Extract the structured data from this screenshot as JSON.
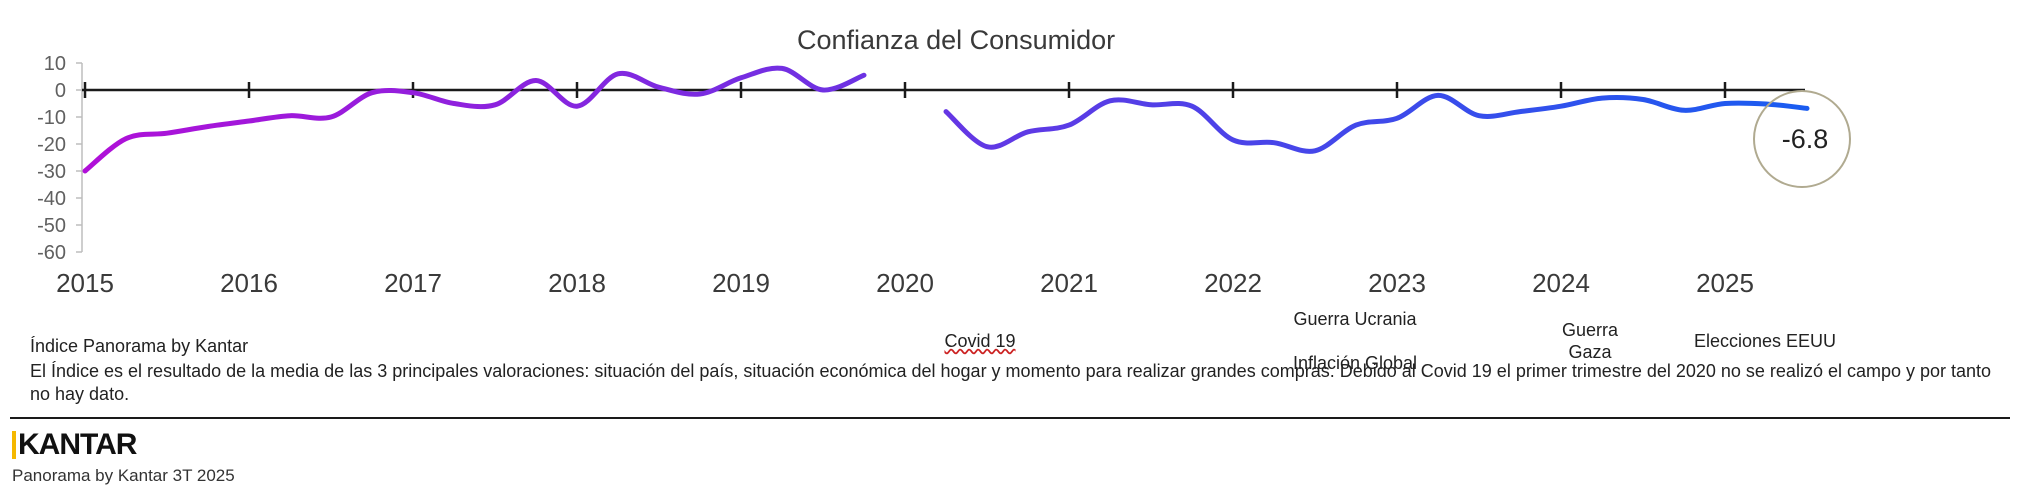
{
  "chart_data": {
    "type": "line",
    "legend": {
      "label": "Confianza del Consumidor",
      "position": "top"
    },
    "colors": {
      "start": "#b010d8",
      "end": "#1a5cf0",
      "axis": "#1a1a1a",
      "callout": "#b0aa90"
    },
    "x_categories": [
      "2015",
      "2016",
      "2017",
      "2018",
      "2019",
      "2020",
      "2021",
      "2022",
      "2023",
      "2024",
      "2025"
    ],
    "ylim": [
      -60,
      10
    ],
    "yticks": [
      10,
      0,
      -10,
      -20,
      -30,
      -40,
      -50,
      -60
    ],
    "grid": false,
    "series": [
      {
        "name": "Confianza del Consumidor",
        "segments": [
          [
            [
              2015.0,
              -30
            ],
            [
              2015.25,
              -18
            ],
            [
              2015.5,
              -16
            ],
            [
              2015.75,
              -13.5
            ],
            [
              2016.0,
              -11.5
            ],
            [
              2016.25,
              -9.5
            ],
            [
              2016.5,
              -10
            ],
            [
              2016.75,
              -1
            ],
            [
              2017.0,
              -1
            ],
            [
              2017.25,
              -5
            ],
            [
              2017.5,
              -5.5
            ],
            [
              2017.75,
              3.5
            ],
            [
              2018.0,
              -6
            ],
            [
              2018.25,
              6
            ],
            [
              2018.5,
              1
            ],
            [
              2018.75,
              -1.5
            ],
            [
              2019.0,
              4.5
            ],
            [
              2019.25,
              8
            ],
            [
              2019.5,
              0
            ],
            [
              2019.75,
              5.5
            ]
          ],
          [
            [
              2020.25,
              -8
            ],
            [
              2020.5,
              -21
            ],
            [
              2020.75,
              -15.5
            ],
            [
              2021.0,
              -13
            ],
            [
              2021.25,
              -4
            ],
            [
              2021.5,
              -5.5
            ],
            [
              2021.75,
              -6
            ],
            [
              2022.0,
              -18.5
            ],
            [
              2022.25,
              -19.5
            ],
            [
              2022.5,
              -22.5
            ],
            [
              2022.75,
              -13
            ],
            [
              2023.0,
              -10.5
            ],
            [
              2023.25,
              -2
            ],
            [
              2023.5,
              -9.5
            ],
            [
              2023.75,
              -8
            ],
            [
              2024.0,
              -6
            ],
            [
              2024.25,
              -3
            ],
            [
              2024.5,
              -3.5
            ],
            [
              2024.75,
              -7.5
            ],
            [
              2025.0,
              -5
            ],
            [
              2025.25,
              -5.2
            ],
            [
              2025.5,
              -6.8
            ]
          ]
        ]
      }
    ],
    "callout": "-6.8",
    "annotations": [
      {
        "id": "covid",
        "lines": [
          "Covid 19"
        ]
      },
      {
        "id": "ucrania",
        "lines": [
          "Guerra Ucrania"
        ]
      },
      {
        "id": "inflacion",
        "lines": [
          "Inflación Global"
        ]
      },
      {
        "id": "gaza",
        "lines": [
          "Guerra",
          "Gaza"
        ]
      },
      {
        "id": "eeuu",
        "lines": [
          "Elecciones EEUU"
        ]
      }
    ]
  },
  "notes": {
    "title": "Índice Panorama by Kantar",
    "body": "El Índice es el resultado de la media de las 3 principales valoraciones: situación del país, situación económica del hogar y momento para realizar grandes compras. Debido al Covid 19 el primer trimestre del 2020 no se realizó el campo y por tanto no hay dato."
  },
  "footer": {
    "brand": "KANTAR",
    "source": "Panorama by Kantar 3T 2025"
  }
}
